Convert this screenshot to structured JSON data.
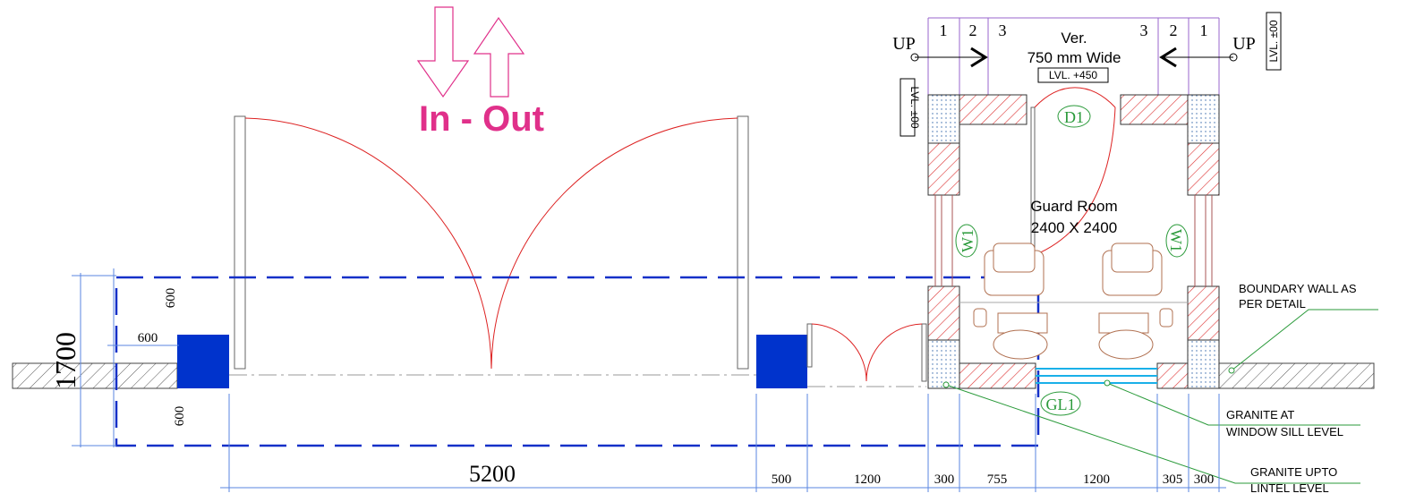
{
  "arrow_label": "In - Out",
  "stair": {
    "up": [
      "UP",
      "UP"
    ],
    "steps_left": [
      "1",
      "2",
      "3"
    ],
    "steps_right": [
      "3",
      "2",
      "1"
    ],
    "title": "Ver.",
    "width": "750 mm Wide",
    "level": "LVL. +450"
  },
  "levels": [
    "LVL. ±00",
    "LVL. ±00"
  ],
  "room": {
    "name": "Guard Room",
    "size": "2400 X 2400",
    "door": "D1",
    "windows": [
      "W1",
      "W1"
    ],
    "glazing": "GL1"
  },
  "notes": [
    {
      "lines": [
        "BOUNDARY WALL AS",
        "PER DETAIL"
      ]
    },
    {
      "lines": [
        "GRANITE AT",
        "WINDOW SILL LEVEL"
      ]
    },
    {
      "lines": [
        "GRANITE UPTO",
        "LINTEL LEVEL"
      ]
    }
  ],
  "dimensions": {
    "overall": "1700",
    "left": [
      "600",
      "600",
      "600"
    ],
    "bottom": [
      "5200",
      "500",
      "1200",
      "300",
      "755",
      "1200",
      "305",
      "300"
    ]
  }
}
